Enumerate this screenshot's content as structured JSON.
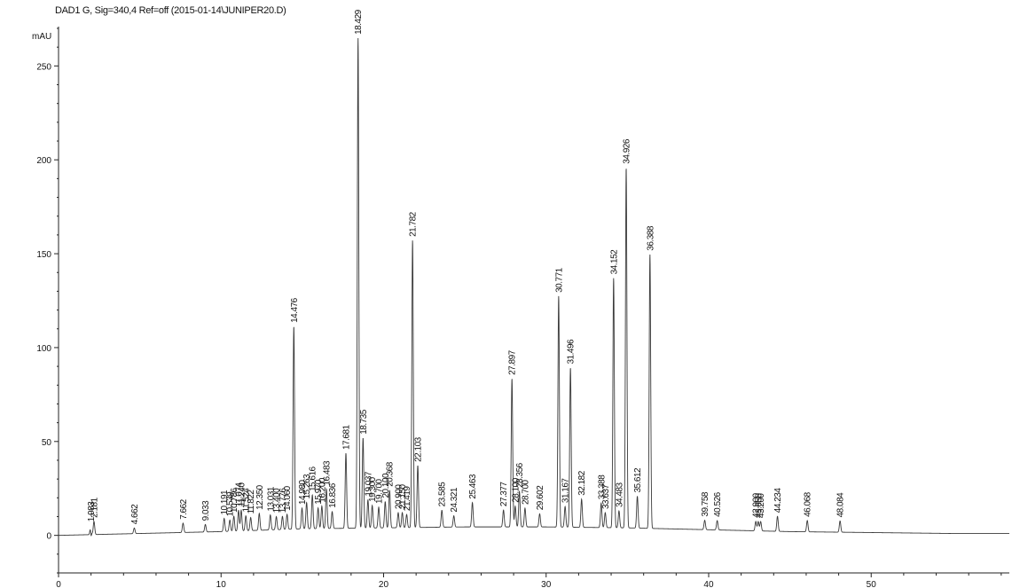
{
  "header": {
    "title": "DAD1 G, Sig=340,4 Ref=off (2015-01-14\\JUNIPER20.D)"
  },
  "chart_data": {
    "type": "line",
    "title": "DAD1 G, Sig=340,4 Ref=off (2015-01-14\\JUNIPER20.D)",
    "xlabel": "",
    "ylabel": "mAU",
    "xlim": [
      0,
      58.5
    ],
    "ylim": [
      -20,
      270
    ],
    "x_ticks": [
      0,
      10,
      20,
      30,
      40,
      50
    ],
    "y_ticks": [
      0,
      50,
      100,
      150,
      200,
      250
    ],
    "grid": false,
    "series_color": "#3a3a3a",
    "baseline": [
      [
        0,
        0
      ],
      [
        5,
        1
      ],
      [
        10,
        2
      ],
      [
        15,
        3.5
      ],
      [
        20,
        4
      ],
      [
        25,
        4.5
      ],
      [
        30,
        4.5
      ],
      [
        35,
        4
      ],
      [
        40,
        3
      ],
      [
        45,
        2
      ],
      [
        50,
        1.5
      ],
      [
        55,
        1
      ],
      [
        58.5,
        1
      ]
    ],
    "peaks": [
      {
        "rt": "1.983",
        "x": 1.983,
        "h": 5
      },
      {
        "rt": "2.181",
        "x": 2.181,
        "h": 7
      },
      {
        "rt": "4.662",
        "x": 4.662,
        "h": 3
      },
      {
        "rt": "7.662",
        "x": 7.662,
        "h": 5
      },
      {
        "rt": "9.033",
        "x": 9.033,
        "h": 4
      },
      {
        "rt": "10.191",
        "x": 10.191,
        "h": 7
      },
      {
        "rt": "10.539",
        "x": 10.539,
        "h": 6
      },
      {
        "rt": "10.786",
        "x": 10.786,
        "h": 8
      },
      {
        "rt": "11.074",
        "x": 11.074,
        "h": 11
      },
      {
        "rt": "11.240",
        "x": 11.24,
        "h": 11
      },
      {
        "rt": "11.524",
        "x": 11.524,
        "h": 8
      },
      {
        "rt": "11.822",
        "x": 11.822,
        "h": 7
      },
      {
        "rt": "12.350",
        "x": 12.35,
        "h": 9
      },
      {
        "rt": "13.031",
        "x": 13.031,
        "h": 8
      },
      {
        "rt": "13.400",
        "x": 13.4,
        "h": 7
      },
      {
        "rt": "13.776",
        "x": 13.776,
        "h": 7
      },
      {
        "rt": "14.060",
        "x": 14.06,
        "h": 8
      },
      {
        "rt": "14.476",
        "x": 14.476,
        "h": 108
      },
      {
        "rt": "14.980",
        "x": 14.98,
        "h": 11
      },
      {
        "rt": "15.263",
        "x": 15.263,
        "h": 14
      },
      {
        "rt": "15.616",
        "x": 15.616,
        "h": 18
      },
      {
        "rt": "15.970",
        "x": 15.97,
        "h": 11
      },
      {
        "rt": "16.200",
        "x": 16.2,
        "h": 12
      },
      {
        "rt": "16.483",
        "x": 16.483,
        "h": 21
      },
      {
        "rt": "16.836",
        "x": 16.836,
        "h": 9
      },
      {
        "rt": "17.681",
        "x": 17.681,
        "h": 40
      },
      {
        "rt": "18.429",
        "x": 18.429,
        "h": 261
      },
      {
        "rt": "18.735",
        "x": 18.735,
        "h": 48
      },
      {
        "rt": "19.037",
        "x": 19.037,
        "h": 15
      },
      {
        "rt": "19.300",
        "x": 19.3,
        "h": 12
      },
      {
        "rt": "19.700",
        "x": 19.7,
        "h": 11
      },
      {
        "rt": "20.100",
        "x": 20.1,
        "h": 14
      },
      {
        "rt": "20.368",
        "x": 20.368,
        "h": 20
      },
      {
        "rt": "20.900",
        "x": 20.9,
        "h": 8
      },
      {
        "rt": "21.150",
        "x": 21.15,
        "h": 8
      },
      {
        "rt": "21.419",
        "x": 21.419,
        "h": 7
      },
      {
        "rt": "21.782",
        "x": 21.782,
        "h": 153
      },
      {
        "rt": "22.103",
        "x": 22.103,
        "h": 33
      },
      {
        "rt": "23.585",
        "x": 23.585,
        "h": 9
      },
      {
        "rt": "24.321",
        "x": 24.321,
        "h": 6
      },
      {
        "rt": "25.463",
        "x": 25.463,
        "h": 13
      },
      {
        "rt": "27.377",
        "x": 27.377,
        "h": 9
      },
      {
        "rt": "27.897",
        "x": 27.897,
        "h": 79
      },
      {
        "rt": "28.100",
        "x": 28.1,
        "h": 11
      },
      {
        "rt": "28.356",
        "x": 28.356,
        "h": 19
      },
      {
        "rt": "28.700",
        "x": 28.7,
        "h": 10
      },
      {
        "rt": "29.602",
        "x": 29.602,
        "h": 7
      },
      {
        "rt": "30.771",
        "x": 30.771,
        "h": 123
      },
      {
        "rt": "31.167",
        "x": 31.167,
        "h": 11
      },
      {
        "rt": "31.496",
        "x": 31.496,
        "h": 85
      },
      {
        "rt": "32.182",
        "x": 32.182,
        "h": 15
      },
      {
        "rt": "33.388",
        "x": 33.388,
        "h": 13
      },
      {
        "rt": "33.637",
        "x": 33.637,
        "h": 8
      },
      {
        "rt": "34.152",
        "x": 34.152,
        "h": 133
      },
      {
        "rt": "34.483",
        "x": 34.483,
        "h": 9
      },
      {
        "rt": "34.926",
        "x": 34.926,
        "h": 192
      },
      {
        "rt": "35.612",
        "x": 35.612,
        "h": 17
      },
      {
        "rt": "36.388",
        "x": 36.388,
        "h": 146
      },
      {
        "rt": "39.758",
        "x": 39.758,
        "h": 5
      },
      {
        "rt": "40.526",
        "x": 40.526,
        "h": 5
      },
      {
        "rt": "42.900",
        "x": 42.9,
        "h": 5
      },
      {
        "rt": "43.050",
        "x": 43.05,
        "h": 5
      },
      {
        "rt": "43.200",
        "x": 43.2,
        "h": 5
      },
      {
        "rt": "44.234",
        "x": 44.234,
        "h": 8
      },
      {
        "rt": "46.068",
        "x": 46.068,
        "h": 6
      },
      {
        "rt": "48.084",
        "x": 48.084,
        "h": 6
      }
    ]
  }
}
